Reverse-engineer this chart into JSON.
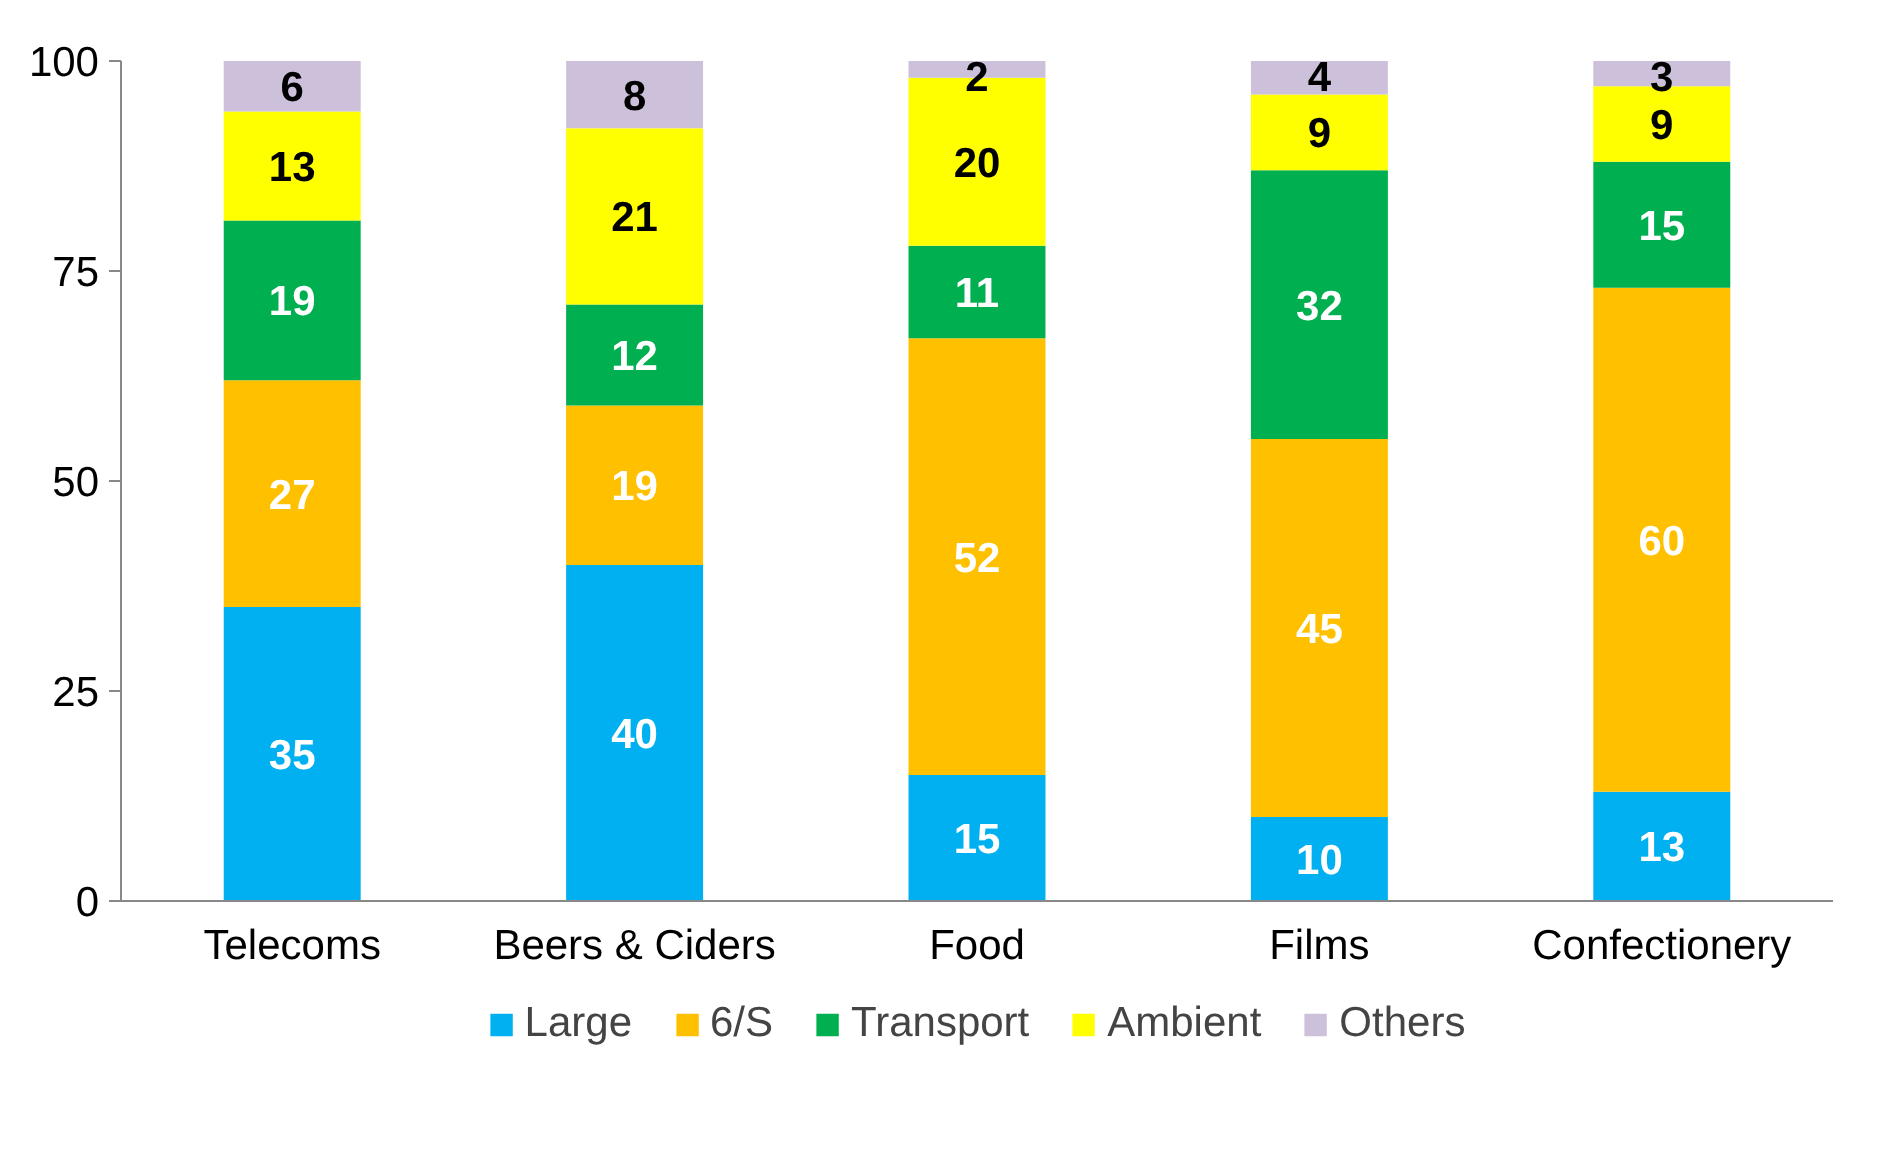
{
  "chart_data": {
    "type": "bar",
    "stacked": true,
    "categories": [
      "Telecoms",
      "Beers & Ciders",
      "Food",
      "Films",
      "Confectionery"
    ],
    "series": [
      {
        "name": "Large",
        "color": "#00b0f0",
        "values": [
          35,
          40,
          15,
          10,
          13
        ]
      },
      {
        "name": "6/S",
        "color": "#ffc000",
        "values": [
          27,
          19,
          52,
          45,
          60
        ]
      },
      {
        "name": "Transport",
        "color": "#00b050",
        "values": [
          19,
          12,
          11,
          32,
          15
        ]
      },
      {
        "name": "Ambient",
        "color": "#ffff00",
        "values": [
          13,
          21,
          20,
          9,
          9
        ]
      },
      {
        "name": "Others",
        "color": "#ccc0da",
        "values": [
          6,
          8,
          2,
          4,
          3
        ]
      }
    ],
    "ylim": [
      0,
      100
    ],
    "yticks": [
      0,
      25,
      50,
      75,
      100
    ],
    "grid": false,
    "legend": "bottom",
    "data_labels": true
  }
}
